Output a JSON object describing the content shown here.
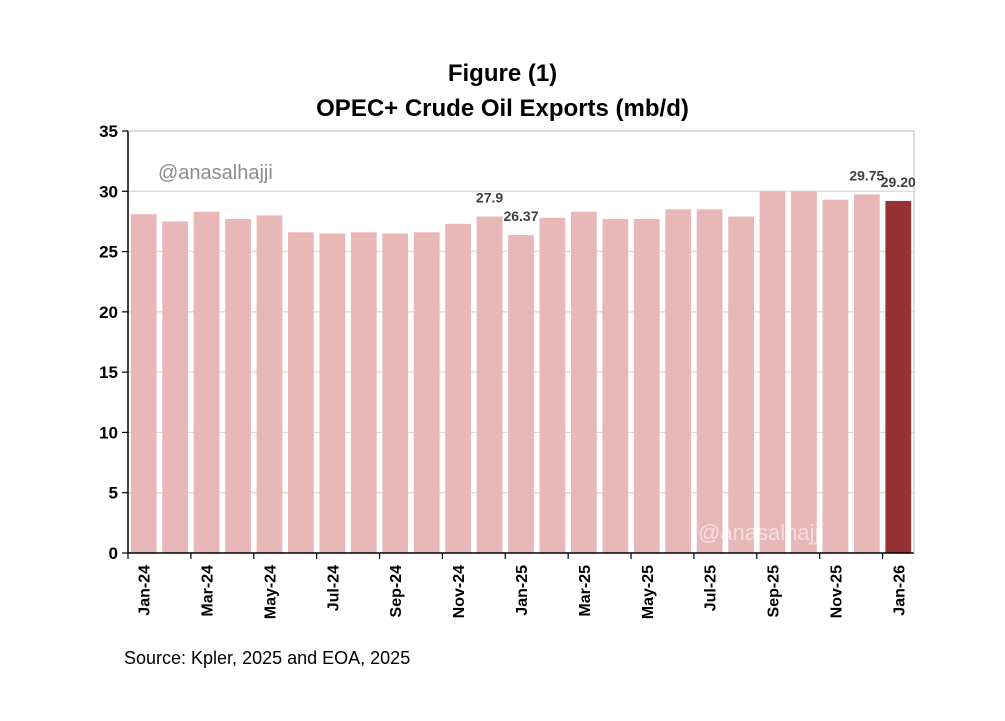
{
  "title": "Figure (1)",
  "subtitle": "OPEC+ Crude Oil Exports (mb/d)",
  "source": "Source: Kpler, 2025 and EOA, 2025",
  "watermarks": [
    "@anasalhajji",
    "@anasalhajji"
  ],
  "colors": {
    "bar": "#e8b8b8",
    "highlight": "#973234",
    "grid": "#d9d9d9",
    "axis": "#000000"
  },
  "chart_data": {
    "type": "bar",
    "categories": [
      "Jan-24",
      "Feb-24",
      "Mar-24",
      "Apr-24",
      "May-24",
      "Jun-24",
      "Jul-24",
      "Aug-24",
      "Sep-24",
      "Oct-24",
      "Nov-24",
      "Dec-24",
      "Jan-25",
      "Feb-25",
      "Mar-25",
      "Apr-25",
      "May-25",
      "Jun-25",
      "Jul-25",
      "Aug-25",
      "Sep-25",
      "Oct-25",
      "Nov-25",
      "Dec-25",
      "Jan-26"
    ],
    "x_tick_labels": [
      "Jan-24",
      "Mar-24",
      "May-24",
      "Jul-24",
      "Sep-24",
      "Nov-24",
      "Jan-25",
      "Mar-25",
      "May-25",
      "Jul-25",
      "Sep-25",
      "Nov-25",
      "Jan-26"
    ],
    "values": [
      28.1,
      27.5,
      28.3,
      27.7,
      28.0,
      26.6,
      26.5,
      26.6,
      26.5,
      26.6,
      27.3,
      27.9,
      26.37,
      27.8,
      28.3,
      27.7,
      27.7,
      28.5,
      28.5,
      27.9,
      30.0,
      30.0,
      29.3,
      29.75,
      29.2
    ],
    "data_labels": [
      {
        "index": 11,
        "text": "27.9"
      },
      {
        "index": 12,
        "text": "26.37"
      },
      {
        "index": 23,
        "text": "29.75"
      },
      {
        "index": 24,
        "text": "29.20"
      }
    ],
    "highlight_index": 24,
    "ylim": [
      0,
      35
    ],
    "yticks": [
      0,
      5,
      10,
      15,
      20,
      25,
      30,
      35
    ],
    "xlabel": "",
    "ylabel": "",
    "grid": "horizontal",
    "legend": "none"
  }
}
